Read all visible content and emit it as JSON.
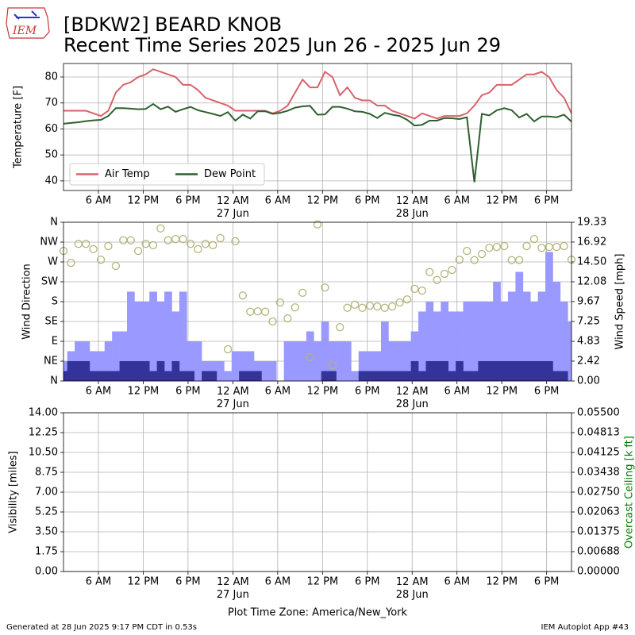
{
  "title": "[BDKW2] BEARD KNOB",
  "subtitle": "Recent Time Series 2025 Jun 26 - 2025 Jun 29",
  "logo_text": "IEM",
  "footer_left": "Generated at 28 Jun 2025 9:17 PM CDT in 0.53s",
  "footer_right": "IEM Autoplot App #43",
  "chart_data": [
    {
      "type": "line",
      "ylabel": "Temperature [F]",
      "grid": true,
      "legend": "lower left",
      "xlim": [
        1.33,
        69.33
      ],
      "ylim": [
        36.3,
        85.2
      ],
      "yticks": [
        40,
        50,
        60,
        70,
        80
      ],
      "xticks": [
        {
          "value": 6,
          "label": "6 AM"
        },
        {
          "value": 12,
          "label": "12 PM"
        },
        {
          "value": 18,
          "label": "6 PM"
        },
        {
          "value": 24,
          "label": "12 AM\n27 Jun"
        },
        {
          "value": 30,
          "label": "6 AM"
        },
        {
          "value": 36,
          "label": "12 PM"
        },
        {
          "value": 42,
          "label": "6 PM"
        },
        {
          "value": 48,
          "label": "12 AM\n28 Jun"
        },
        {
          "value": 54,
          "label": "6 AM"
        },
        {
          "value": 60,
          "label": "12 PM"
        },
        {
          "value": 66,
          "label": "6 PM"
        }
      ],
      "x": [
        1.33,
        2.33,
        3.33,
        4.33,
        5.33,
        6.33,
        7.33,
        8.33,
        9.33,
        10.33,
        11.33,
        12.33,
        13.33,
        14.33,
        15.33,
        16.33,
        17.33,
        18.33,
        19.33,
        20.33,
        21.33,
        22.33,
        23.33,
        24.33,
        25.33,
        26.33,
        27.33,
        28.33,
        29.33,
        30.33,
        31.33,
        32.33,
        33.33,
        34.33,
        35.33,
        36.33,
        37.33,
        38.33,
        39.33,
        40.33,
        41.33,
        42.33,
        43.33,
        44.33,
        45.33,
        46.33,
        47.33,
        48.33,
        49.33,
        50.33,
        51.33,
        52.33,
        53.33,
        54.33,
        55.33,
        56.33,
        57.33,
        58.33,
        59.33,
        60.33,
        61.33,
        62.33,
        63.33,
        64.33,
        65.33,
        66.33,
        67.33,
        68.33,
        69.33
      ],
      "series": [
        {
          "name": "Air Temp",
          "color": "#d9626b",
          "values": [
            67,
            67,
            67,
            67,
            66,
            65,
            67,
            74,
            77,
            78,
            80,
            81,
            83,
            82,
            81,
            80,
            77,
            77,
            75,
            72,
            71,
            70,
            69,
            67,
            67,
            67,
            67,
            67,
            66,
            67,
            69,
            74,
            79,
            76,
            76,
            82,
            80,
            73,
            76,
            72,
            71,
            71,
            69,
            69,
            67,
            66,
            65,
            64,
            66,
            65,
            64,
            65,
            65,
            65,
            66,
            69,
            73,
            74,
            77,
            77,
            77,
            79,
            81,
            81,
            82,
            80,
            75,
            72,
            66
          ]
        },
        {
          "name": "Dew Point",
          "color": "#2f5f30",
          "values": [
            62,
            62.3,
            62.6,
            63,
            63.3,
            63.5,
            65,
            68,
            68,
            67.8,
            67.6,
            67.7,
            69.6,
            67.6,
            68.6,
            66.6,
            67.6,
            68.5,
            67.2,
            66.5,
            65.8,
            65,
            66.5,
            63.2,
            65.5,
            64,
            66.8,
            66.8,
            65.8,
            66.2,
            67,
            68.2,
            68.7,
            68.9,
            65.5,
            65.6,
            68.5,
            68.5,
            67.8,
            66.8,
            66.6,
            65.8,
            64.2,
            66.2,
            65.5,
            65,
            63.5,
            61.3,
            61.6,
            63.2,
            63.2,
            64.2,
            64.1,
            63.8,
            64.5,
            39.5,
            65.8,
            65.2,
            67.2,
            68,
            67.2,
            64.4,
            65.8,
            62.9,
            64.8,
            64.8,
            64.5,
            65.5,
            62.8
          ]
        }
      ]
    },
    {
      "type": "combo",
      "ylabel": "Wind Direction",
      "y2label": "Wind Speed [mph]",
      "grid": true,
      "xlim": [
        1.33,
        69.33
      ],
      "xticks": [
        {
          "value": 6,
          "label": "6 AM"
        },
        {
          "value": 12,
          "label": "12 PM"
        },
        {
          "value": 18,
          "label": "6 PM"
        },
        {
          "value": 24,
          "label": "12 AM\n27 Jun"
        },
        {
          "value": 30,
          "label": "6 AM"
        },
        {
          "value": 36,
          "label": "12 PM"
        },
        {
          "value": 42,
          "label": "6 PM"
        },
        {
          "value": 48,
          "label": "12 AM\n28 Jun"
        },
        {
          "value": 54,
          "label": "6 AM"
        },
        {
          "value": 60,
          "label": "12 PM"
        },
        {
          "value": 66,
          "label": "6 PM"
        }
      ],
      "ylim": [
        0,
        360
      ],
      "yticks": [
        {
          "value": 0,
          "label": "N"
        },
        {
          "value": 45,
          "label": "NE"
        },
        {
          "value": 90,
          "label": "E"
        },
        {
          "value": 135,
          "label": "SE"
        },
        {
          "value": 180,
          "label": "S"
        },
        {
          "value": 225,
          "label": "SW"
        },
        {
          "value": 270,
          "label": "W"
        },
        {
          "value": 315,
          "label": "NW"
        },
        {
          "value": 360,
          "label": "N"
        }
      ],
      "y2lim": [
        0,
        19.33
      ],
      "y2ticks": [
        {
          "value": 0,
          "label": "0.00"
        },
        2.42,
        4.83,
        7.25,
        9.67,
        12.08,
        {
          "value": 14.5,
          "label": "14.50"
        },
        16.92,
        19.33
      ],
      "x": [
        1.33,
        2.33,
        3.33,
        4.33,
        5.33,
        6.33,
        7.33,
        8.33,
        9.33,
        10.33,
        11.33,
        12.33,
        13.33,
        14.33,
        15.33,
        16.33,
        17.33,
        18.33,
        19.33,
        20.33,
        21.33,
        22.33,
        23.33,
        24.33,
        25.33,
        26.33,
        27.33,
        28.33,
        29.33,
        30.33,
        31.33,
        32.33,
        33.33,
        34.33,
        35.33,
        36.33,
        37.33,
        38.33,
        39.33,
        40.33,
        41.33,
        42.33,
        43.33,
        44.33,
        45.33,
        46.33,
        47.33,
        48.33,
        49.33,
        50.33,
        51.33,
        52.33,
        53.33,
        54.33,
        55.33,
        56.33,
        57.33,
        58.33,
        59.33,
        60.33,
        61.33,
        62.33,
        63.33,
        64.33,
        65.33,
        66.33,
        67.33,
        68.33,
        69.33
      ],
      "series": [
        {
          "type": "bar",
          "axis": "y2",
          "color": "#9999ff",
          "values": [
            2.42,
            3.63,
            4.83,
            4.83,
            3.63,
            3.63,
            4.83,
            6.04,
            6.04,
            10.88,
            9.67,
            9.67,
            10.88,
            9.67,
            10.88,
            8.46,
            10.88,
            4.83,
            4.83,
            2.42,
            2.42,
            2.42,
            1.21,
            3.63,
            3.63,
            3.63,
            2.42,
            2.42,
            2.42,
            0,
            4.83,
            4.83,
            4.83,
            6.04,
            4.83,
            7.25,
            4.83,
            4.83,
            4.83,
            1.21,
            3.63,
            3.63,
            3.63,
            7.25,
            4.83,
            4.83,
            4.83,
            6.04,
            8.46,
            9.67,
            8.46,
            9.67,
            8.46,
            8.46,
            9.67,
            9.67,
            9.67,
            9.67,
            12.08,
            9.67,
            10.88,
            13.29,
            10.88,
            9.67,
            10.88,
            15.71,
            12.08,
            9.67,
            7.25
          ]
        },
        {
          "type": "bar",
          "axis": "y2",
          "color": "#333399",
          "values": [
            1.21,
            2.42,
            2.42,
            2.42,
            1.21,
            1.21,
            1.21,
            1.21,
            2.42,
            2.42,
            2.42,
            2.42,
            1.21,
            2.42,
            1.21,
            2.42,
            1.21,
            1.21,
            0,
            1.21,
            1.21,
            0,
            0,
            0,
            1.21,
            1.21,
            1.21,
            0,
            0,
            0,
            0,
            0,
            0,
            0,
            0,
            1.21,
            1.21,
            0,
            0,
            0,
            1.21,
            1.21,
            1.21,
            1.21,
            1.21,
            1.21,
            1.21,
            2.42,
            1.21,
            2.42,
            2.42,
            2.42,
            1.21,
            2.42,
            1.21,
            1.21,
            2.42,
            2.42,
            2.42,
            2.42,
            2.42,
            2.42,
            2.42,
            2.42,
            2.42,
            2.42,
            1.21,
            1.21,
            0
          ]
        },
        {
          "type": "scatter",
          "color": "#b3b37a",
          "values": [
            295,
            268,
            311,
            311,
            299,
            275,
            306,
            261,
            319,
            319,
            295,
            311,
            308,
            346,
            319,
            322,
            322,
            311,
            299,
            311,
            308,
            324,
            72,
            317,
            194,
            157,
            158,
            157,
            135,
            178,
            142,
            167,
            200,
            54,
            355,
            212,
            36,
            122,
            166,
            173,
            166,
            171,
            169,
            166,
            169,
            178,
            185,
            209,
            205,
            247,
            229,
            243,
            252,
            275,
            295,
            274,
            288,
            302,
            304,
            306,
            274,
            274,
            306,
            322,
            302,
            304,
            304,
            306,
            275
          ]
        }
      ]
    },
    {
      "type": "line",
      "ylabel": "Visibility [miles]",
      "y2label": "Overcast Ceiling [k ft]",
      "y2label_color": "#008000",
      "grid": true,
      "xlabel": "Plot Time Zone: America/New_York",
      "xlim": [
        1.33,
        69.33
      ],
      "xticks": [
        {
          "value": 6,
          "label": "6 AM"
        },
        {
          "value": 12,
          "label": "12 PM"
        },
        {
          "value": 18,
          "label": "6 PM"
        },
        {
          "value": 24,
          "label": "12 AM\n27 Jun"
        },
        {
          "value": 30,
          "label": "6 AM"
        },
        {
          "value": 36,
          "label": "12 PM"
        },
        {
          "value": 42,
          "label": "6 PM"
        },
        {
          "value": 48,
          "label": "12 AM\n28 Jun"
        },
        {
          "value": 54,
          "label": "6 AM"
        },
        {
          "value": 60,
          "label": "12 PM"
        },
        {
          "value": 66,
          "label": "6 PM"
        }
      ],
      "ylim": [
        0,
        14
      ],
      "yticks": [
        {
          "value": 0,
          "label": "0.00"
        },
        1.75,
        {
          "value": 3.5,
          "label": "3.50"
        },
        5.25,
        {
          "value": 7,
          "label": "7.00"
        },
        8.75,
        {
          "value": 10.5,
          "label": "10.50"
        },
        12.25,
        {
          "value": 14,
          "label": "14.00"
        }
      ],
      "y2lim": [
        0,
        0.055
      ],
      "y2ticks": [
        {
          "value": 0,
          "label": "0.00000"
        },
        {
          "value": 0.006875,
          "label": "0.00688"
        },
        {
          "value": 0.01375,
          "label": "0.01375"
        },
        {
          "value": 0.020625,
          "label": "0.02063"
        },
        {
          "value": 0.0275,
          "label": "0.02750"
        },
        {
          "value": 0.034375,
          "label": "0.03438"
        },
        {
          "value": 0.04125,
          "label": "0.04125"
        },
        {
          "value": 0.048125,
          "label": "0.04813"
        },
        {
          "value": 0.055,
          "label": "0.05500"
        }
      ],
      "series": []
    }
  ]
}
